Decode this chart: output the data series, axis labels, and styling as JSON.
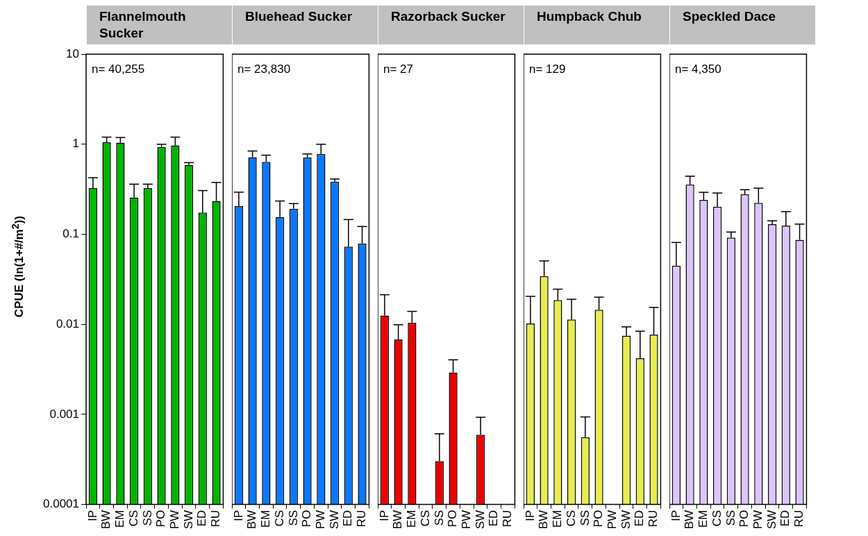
{
  "chart_data": [
    {
      "type": "bar",
      "title": "Flannelmouth Sucker",
      "ylabel": "CPUE (ln(1+#/m$^{2}$))",
      "annotations": [
        "n= 40,255"
      ],
      "categories": [
        "IP",
        "BW",
        "EM",
        "CS",
        "SS",
        "PO",
        "PW",
        "SW",
        "ED",
        "RU"
      ],
      "color": "#00b400",
      "log": true,
      "ylim": [
        0.0001,
        10
      ],
      "yticks": [
        0.0001,
        0.001,
        0.01,
        0.1,
        1,
        10
      ],
      "values": [
        0.325,
        1.05,
        1.04,
        0.256,
        0.325,
        0.93,
        0.97,
        0.59,
        0.174,
        0.234
      ],
      "errors": [
        [
          0.325,
          0.425
        ],
        [
          1.05,
          1.2
        ],
        [
          1.04,
          1.19
        ],
        [
          0.256,
          0.36
        ],
        [
          0.325,
          0.36
        ],
        [
          0.93,
          1.0
        ],
        [
          0.97,
          1.2
        ],
        [
          0.59,
          0.625
        ],
        [
          0.174,
          0.306
        ],
        [
          0.234,
          0.377
        ]
      ]
    },
    {
      "type": "bar",
      "title": "Bluehead Sucker",
      "annotations": [
        "n= 23,830"
      ],
      "categories": [
        "IP",
        "BW",
        "EM",
        "CS",
        "SS",
        "PO",
        "PW",
        "SW",
        "ED",
        "RU"
      ],
      "color": "#0a78ff",
      "log": true,
      "ylim": [
        0.0001,
        10
      ],
      "yticks": [
        0.0001,
        0.001,
        0.01,
        0.1,
        1,
        10
      ],
      "tick_labels": "x",
      "values": [
        0.205,
        0.716,
        0.636,
        0.156,
        0.192,
        0.712,
        0.78,
        0.384,
        0.073,
        0.079
      ],
      "errors": [
        [
          0.205,
          0.294
        ],
        [
          0.716,
          0.84
        ],
        [
          0.636,
          0.756
        ],
        [
          0.156,
          0.234
        ],
        [
          0.192,
          0.219
        ],
        [
          0.712,
          0.78
        ],
        [
          0.78,
          1.0
        ],
        [
          0.384,
          0.412
        ],
        [
          0.073,
          0.146
        ],
        [
          0.079,
          0.122
        ]
      ]
    },
    {
      "type": "bar",
      "title": "Razorback Sucker",
      "annotations": [
        "n= 27"
      ],
      "categories": [
        "IP",
        "BW",
        "EM",
        "CS",
        "SS",
        "PO",
        "PW",
        "SW",
        "ED",
        "RU"
      ],
      "color": "#f00000",
      "log": true,
      "ylim": [
        0.0001,
        10
      ],
      "yticks": [
        0.0001,
        0.001,
        0.01,
        0.1,
        1,
        10
      ],
      "tick_labels": "x",
      "values": [
        0.0125,
        0.0068,
        0.0104,
        null,
        0.000303,
        0.00292,
        null,
        0.000593,
        null,
        null
      ],
      "errors": [
        [
          0.0125,
          0.0213
        ],
        [
          0.0068,
          0.0099
        ],
        [
          0.0104,
          0.0139
        ],
        null,
        [
          0.000303,
          0.00061
        ],
        [
          0.00292,
          0.00404
        ],
        null,
        [
          0.000593,
          0.00093
        ],
        null,
        null
      ]
    },
    {
      "type": "bar",
      "title": "Humpback Chub",
      "annotations": [
        "n= 129"
      ],
      "categories": [
        "IP",
        "BW",
        "EM",
        "CS",
        "SS",
        "PO",
        "PW",
        "SW",
        "ED",
        "RU"
      ],
      "color": "#e8ec50",
      "log": true,
      "ylim": [
        0.0001,
        10
      ],
      "yticks": [
        0.0001,
        0.001,
        0.01,
        0.1,
        1,
        10
      ],
      "tick_labels": "x",
      "values": [
        0.0102,
        0.0343,
        0.0186,
        0.0113,
        0.000558,
        0.0145,
        null,
        0.0075,
        0.0042,
        0.0077
      ],
      "errors": [
        [
          0.0102,
          0.0205
        ],
        [
          0.0343,
          0.0507
        ],
        [
          0.0186,
          0.0246
        ],
        [
          0.0113,
          0.019
        ],
        [
          0.000558,
          0.00094
        ],
        [
          0.0145,
          0.02
        ],
        null,
        [
          0.0075,
          0.0094
        ],
        [
          0.0042,
          0.0084
        ],
        [
          0.0077,
          0.0154
        ]
      ]
    },
    {
      "type": "bar",
      "title": "Speckled Dace",
      "annotations": [
        "n= 4,350"
      ],
      "categories": [
        "IP",
        "BW",
        "EM",
        "CS",
        "SS",
        "PO",
        "PW",
        "SW",
        "ED",
        "RU"
      ],
      "color": "#dcc4fc",
      "log": true,
      "ylim": [
        0.0001,
        10
      ],
      "yticks": [
        0.0001,
        0.001,
        0.01,
        0.1,
        1,
        10
      ],
      "tick_labels": "x",
      "values": [
        0.0448,
        0.357,
        0.241,
        0.202,
        0.092,
        0.278,
        0.223,
        0.129,
        0.125,
        0.0867
      ],
      "errors": [
        [
          0.0448,
          0.081
        ],
        [
          0.357,
          0.442
        ],
        [
          0.241,
          0.292
        ],
        [
          0.202,
          0.287
        ],
        [
          0.092,
          0.106
        ],
        [
          0.278,
          0.312
        ],
        [
          0.223,
          0.325
        ],
        [
          0.129,
          0.141
        ],
        [
          0.125,
          0.179
        ],
        [
          0.0867,
          0.13
        ]
      ]
    }
  ]
}
